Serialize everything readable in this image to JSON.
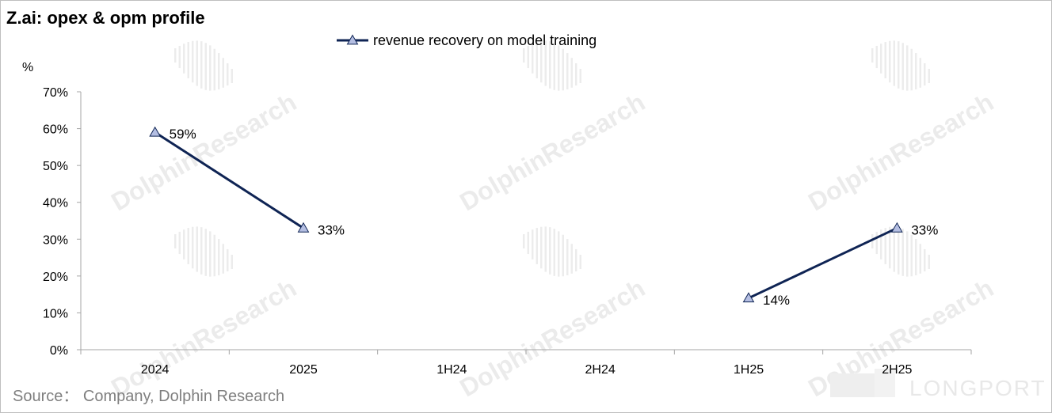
{
  "title": "Z.ai: opex & opm profile",
  "source": "Source：  Company, Dolphin Research",
  "watermark": "DolphinResearch",
  "brand_watermark": "LONGPORT",
  "colors": {
    "series": "#0f2454",
    "marker_fill": "#b4bee2",
    "axis": "#a6a6a6",
    "watermark": "#ececec"
  },
  "chart_data": {
    "type": "line",
    "ylabel": "%",
    "categories": [
      "2024",
      "2025",
      "1H24",
      "2H24",
      "1H25",
      "2H25"
    ],
    "ylim": [
      0,
      70
    ],
    "yticks": [
      0,
      10,
      20,
      30,
      40,
      50,
      60,
      70
    ],
    "ytick_labels": [
      "0%",
      "10%",
      "20%",
      "30%",
      "40%",
      "50%",
      "60%",
      "70%"
    ],
    "grid": false,
    "legend_position": "top-center",
    "series": [
      {
        "name": "revenue recovery on model training",
        "marker": "triangle",
        "values": [
          59,
          33,
          null,
          null,
          14,
          33
        ],
        "labels": [
          "59%",
          "33%",
          "",
          "",
          "14%",
          "33%"
        ],
        "segments": [
          [
            0,
            1
          ],
          [
            4,
            5
          ]
        ]
      }
    ]
  }
}
